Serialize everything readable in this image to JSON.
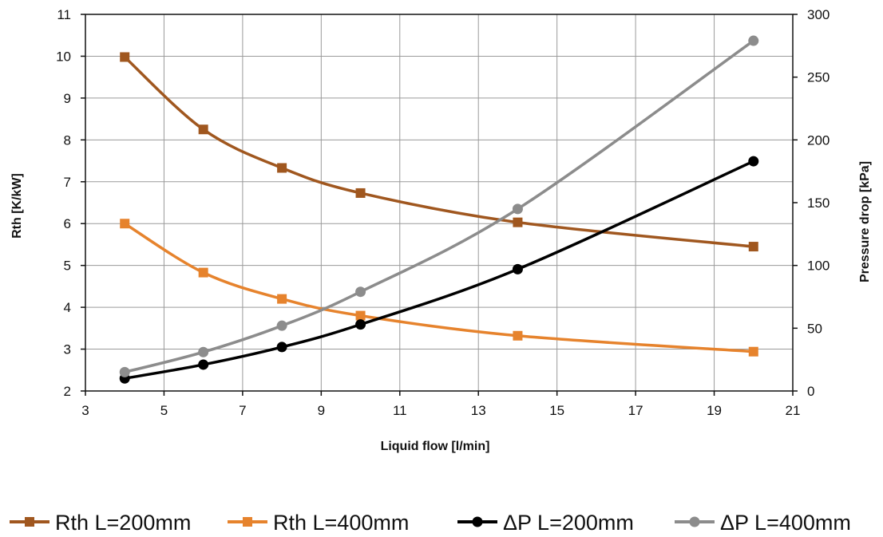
{
  "chart_data": {
    "type": "line",
    "xlabel": "Liquid flow [l/min]",
    "ylabel": "Rth [K/kW]",
    "y2label": "Pressure drop [kPa]",
    "xlim": [
      3,
      21
    ],
    "ylim": [
      2,
      11
    ],
    "y2lim": [
      0,
      300
    ],
    "xticks": [
      3,
      5,
      7,
      9,
      11,
      13,
      15,
      17,
      19,
      21
    ],
    "yticks": [
      2,
      3,
      4,
      5,
      6,
      7,
      8,
      9,
      10,
      11
    ],
    "y2ticks": [
      0,
      50,
      100,
      150,
      200,
      250,
      300
    ],
    "grid": true,
    "legend_position": "bottom",
    "series": [
      {
        "name": "Rth L=200mm",
        "axis": "left",
        "marker": "square",
        "color": "#A0571F",
        "x": [
          4,
          6,
          8,
          10,
          14,
          20
        ],
        "y": [
          9.98,
          8.25,
          7.33,
          6.73,
          6.03,
          5.45
        ]
      },
      {
        "name": "Rth L=400mm",
        "axis": "left",
        "marker": "square",
        "color": "#E6832D",
        "x": [
          4,
          6,
          8,
          10,
          14,
          20
        ],
        "y": [
          6.0,
          4.83,
          4.2,
          3.8,
          3.32,
          2.94
        ]
      },
      {
        "name": "ΔP L=200mm",
        "axis": "right",
        "marker": "circle",
        "color": "#000000",
        "x": [
          4,
          6,
          8,
          10,
          14,
          20
        ],
        "y": [
          10,
          21,
          35,
          53,
          97,
          183
        ]
      },
      {
        "name": "ΔP L=400mm",
        "axis": "right",
        "marker": "circle",
        "color": "#8C8C8C",
        "x": [
          4,
          6,
          8,
          10,
          14,
          20
        ],
        "y": [
          15,
          31,
          52,
          79,
          145,
          279
        ]
      }
    ]
  }
}
